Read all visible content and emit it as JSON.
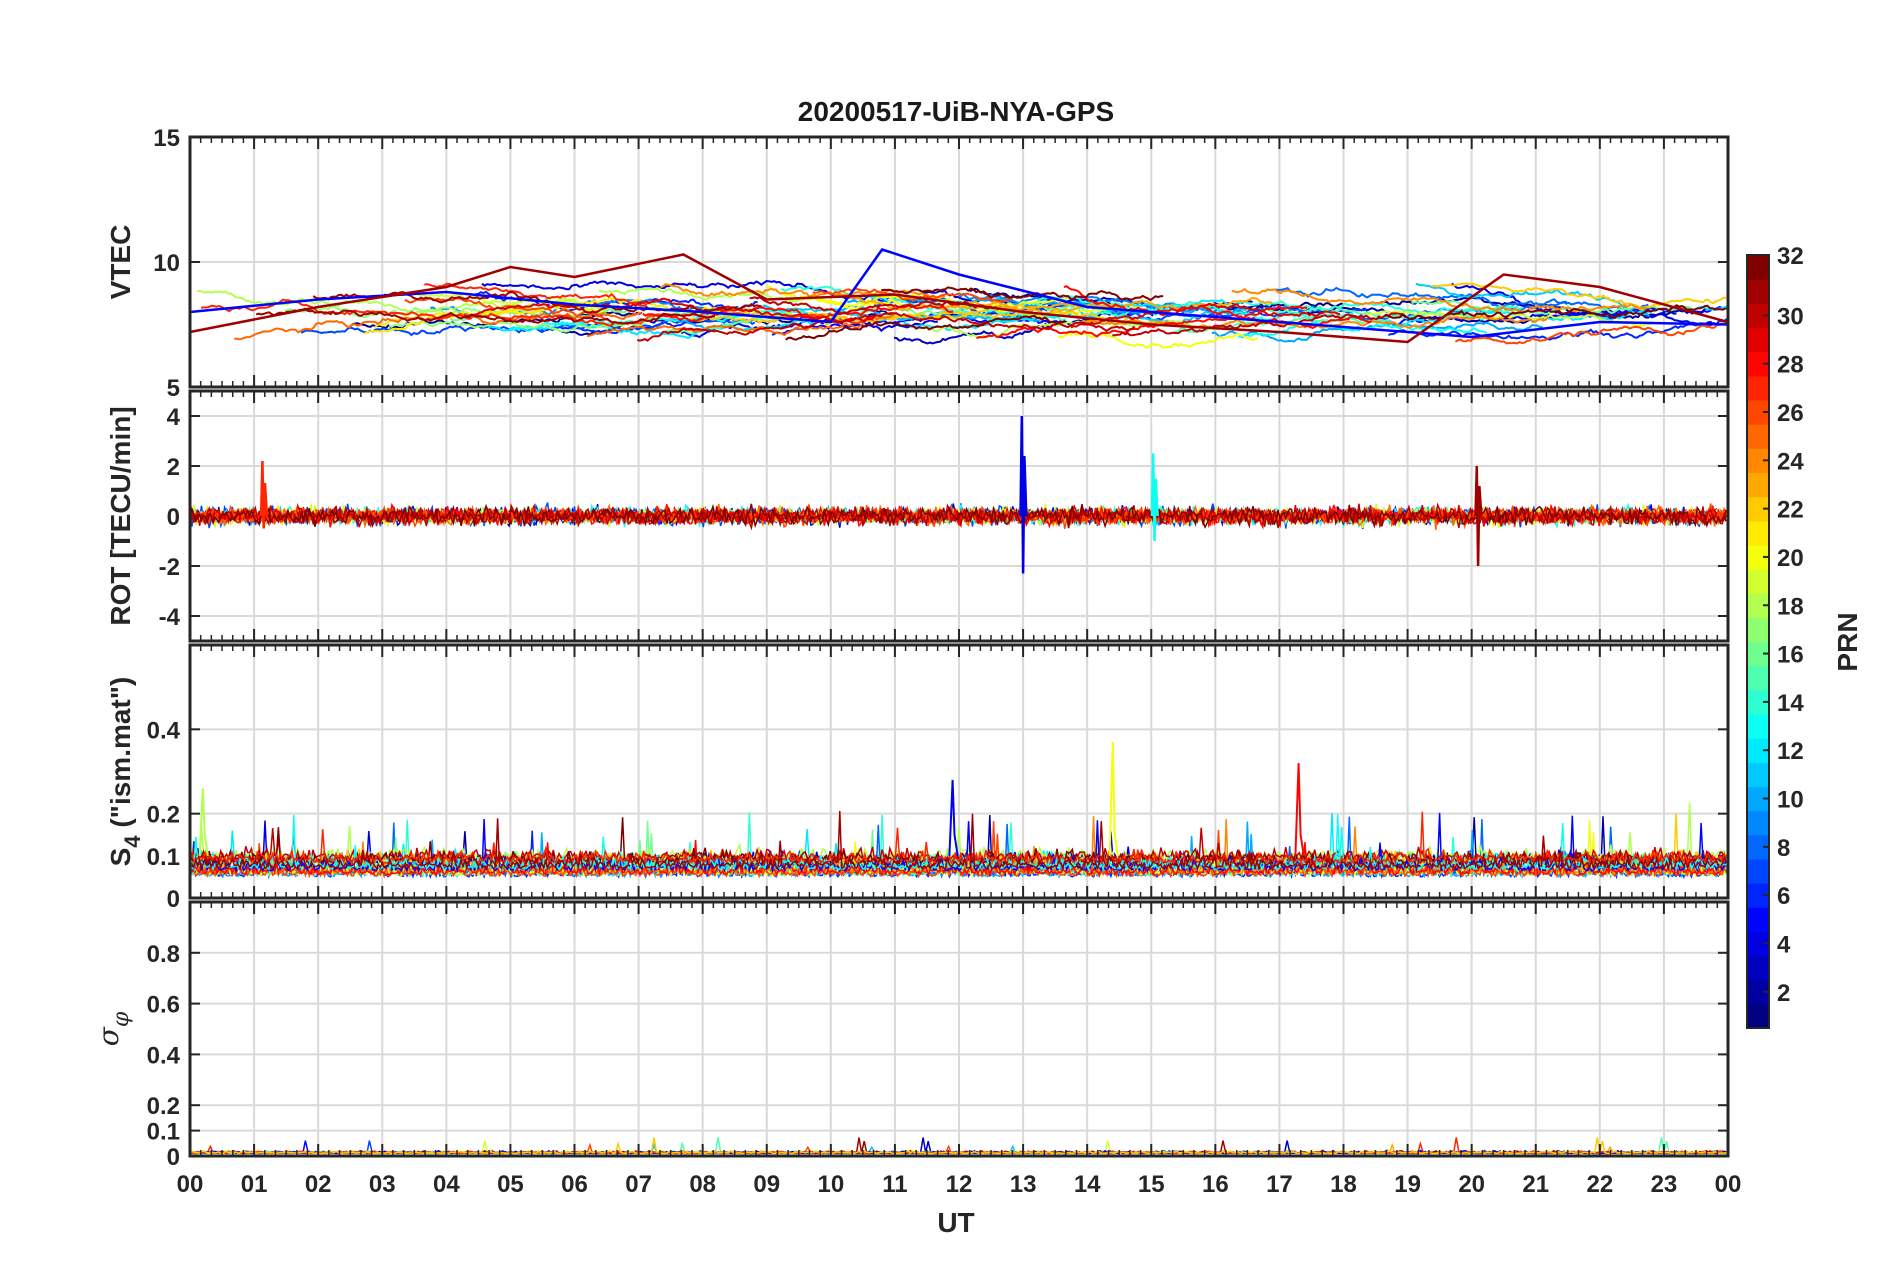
{
  "chart_data": {
    "type": "line",
    "title": "20200517-UiB-NYA-GPS",
    "xlabel": "UT",
    "x_unit": "hour of day (UT)",
    "x_range": [
      0,
      24
    ],
    "x_ticks": [
      "00",
      "01",
      "02",
      "03",
      "04",
      "05",
      "06",
      "07",
      "08",
      "09",
      "10",
      "11",
      "12",
      "13",
      "14",
      "15",
      "16",
      "17",
      "18",
      "19",
      "20",
      "21",
      "22",
      "23",
      "00"
    ],
    "grid": true,
    "colorbar": {
      "label": "PRN",
      "range": [
        1,
        32
      ],
      "ticks": [
        2,
        4,
        6,
        8,
        10,
        12,
        14,
        16,
        18,
        20,
        22,
        24,
        26,
        28,
        30,
        32
      ],
      "colormap": "jet",
      "position": "right"
    },
    "panels": [
      {
        "ylabel": "VTEC",
        "ylim": [
          5,
          15
        ],
        "yticks": [
          5,
          10,
          15
        ],
        "summary": "Vertical TEC traces for all PRNs mostly between about 6 and 10 TECU; peak near 10.5 at ~10.8 UT",
        "series": [
          {
            "prn": 5,
            "x": [
              0,
              2,
              4,
              6,
              8,
              10,
              10.8,
              12,
              14,
              16,
              18,
              20,
              22,
              24
            ],
            "y": [
              8,
              8.5,
              8.8,
              8.3,
              8.0,
              7.6,
              10.5,
              9.5,
              8.2,
              7.8,
              7.4,
              7.0,
              7.6,
              7.5
            ]
          },
          {
            "prn": 31,
            "x": [
              0,
              2,
              4,
              5,
              6,
              7.7,
              9,
              11,
              13,
              15,
              17,
              19,
              20.5,
              22,
              24
            ],
            "y": [
              7.2,
              8.2,
              9.0,
              9.8,
              9.4,
              10.3,
              8.5,
              8.7,
              8.0,
              7.5,
              7.2,
              6.8,
              9.5,
              9.0,
              7.6
            ]
          }
        ]
      },
      {
        "ylabel": "ROT [TECU/min]",
        "ylim": [
          -5,
          5
        ],
        "yticks": [
          -4,
          -2,
          0,
          2,
          4
        ],
        "summary": "ROT near 0 with small fluctuations; spike to ~4 and ~-2.3 near 13.0 UT, ~2 and ~-2 near 20.1 UT",
        "spikes": [
          {
            "x": 13.0,
            "y_max": 4.0,
            "y_min": -2.3,
            "prn": 4
          },
          {
            "x": 20.1,
            "y_max": 2.0,
            "y_min": -2.0,
            "prn": 31
          },
          {
            "x": 1.15,
            "y_max": 2.2,
            "y_min": -0.5,
            "prn": 27
          },
          {
            "x": 15.05,
            "y_max": 2.5,
            "y_min": -1.0,
            "prn": 13
          }
        ]
      },
      {
        "ylabel": "S4 (\"ism.mat\")",
        "ylabel_main": "S",
        "ylabel_sub": "4",
        "ylabel_rest": " (\"ism.mat\")",
        "ylim": [
          0,
          0.6
        ],
        "yticks": [
          0,
          0.1,
          0.2,
          0.4
        ],
        "summary": "S4 baseline ~0.05-0.1 with peaks up to ~0.37 near 14.4 UT and ~0.32 near 17.3 UT",
        "peaks": [
          {
            "x": 14.4,
            "y": 0.37,
            "prn": 20
          },
          {
            "x": 17.3,
            "y": 0.32,
            "prn": 28
          },
          {
            "x": 11.9,
            "y": 0.28,
            "prn": 5
          },
          {
            "x": 0.2,
            "y": 0.26,
            "prn": 18
          }
        ]
      },
      {
        "ylabel": "σφ",
        "ylabel_main": "σ",
        "ylabel_sub": "φ",
        "ylim": [
          0,
          1
        ],
        "yticks": [
          0,
          0.1,
          0.2,
          0.4,
          0.6,
          0.8
        ],
        "summary": "Phase scintillation index near 0 (below ~0.1) throughout the day"
      }
    ]
  }
}
